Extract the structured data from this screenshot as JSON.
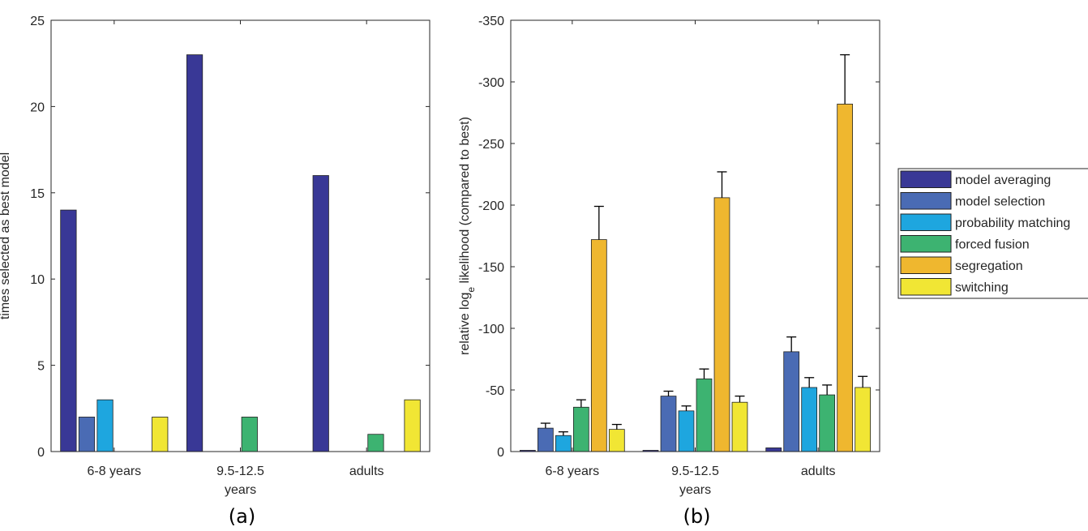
{
  "chart_data": [
    {
      "type": "bar",
      "caption": "(a)",
      "y_label": "times selected as best model",
      "categories": [
        "6-8 years",
        "9.5-12.5\nyears",
        "adults"
      ],
      "series": [
        {
          "color": "#393896",
          "values": [
            14,
            23,
            16
          ]
        },
        {
          "color": "#4a6bb4",
          "values": [
            2,
            0,
            0
          ]
        },
        {
          "color": "#1ea6df",
          "values": [
            3,
            0,
            0
          ]
        },
        {
          "color": "#3db371",
          "values": [
            0,
            2,
            1
          ]
        },
        {
          "color": "#efb72f",
          "values": [
            0,
            0,
            0
          ]
        },
        {
          "color": "#f1e634",
          "values": [
            2,
            0,
            3
          ]
        }
      ],
      "ylim": [
        0,
        25
      ],
      "yticks": [
        0,
        5,
        10,
        15,
        20,
        25
      ]
    },
    {
      "type": "bar",
      "caption": "(b)",
      "y_label": "relative log",
      "y_label_subscript": "e",
      "y_label_rest": " likelihood (compared to best)",
      "categories": [
        "6-8 years",
        "9.5-12.5\nyears",
        "adults"
      ],
      "series": [
        {
          "name": "model averaging",
          "color": "#393896",
          "values": [
            -1,
            -1,
            -3
          ]
        },
        {
          "name": "model selection",
          "color": "#4a6bb4",
          "values": [
            -19,
            -45,
            -81
          ],
          "errors": [
            4,
            4,
            12
          ]
        },
        {
          "name": "probability matching",
          "color": "#1ea6df",
          "values": [
            -13,
            -33,
            -52
          ],
          "errors": [
            3,
            4,
            8
          ]
        },
        {
          "name": "forced fusion",
          "color": "#3db371",
          "values": [
            -36,
            -59,
            -46
          ],
          "errors": [
            6,
            8,
            8
          ]
        },
        {
          "name": "segregation",
          "color": "#efb72f",
          "values": [
            -172,
            -206,
            -282
          ],
          "errors": [
            27,
            21,
            40
          ]
        },
        {
          "name": "switching",
          "color": "#f1e634",
          "values": [
            -18,
            -40,
            -52
          ],
          "errors": [
            4,
            5,
            9
          ]
        }
      ],
      "ylim": [
        0,
        -350
      ],
      "yticks": [
        0,
        -50,
        -100,
        -150,
        -200,
        -250,
        -300,
        -350
      ],
      "legend": "outside-right"
    }
  ]
}
